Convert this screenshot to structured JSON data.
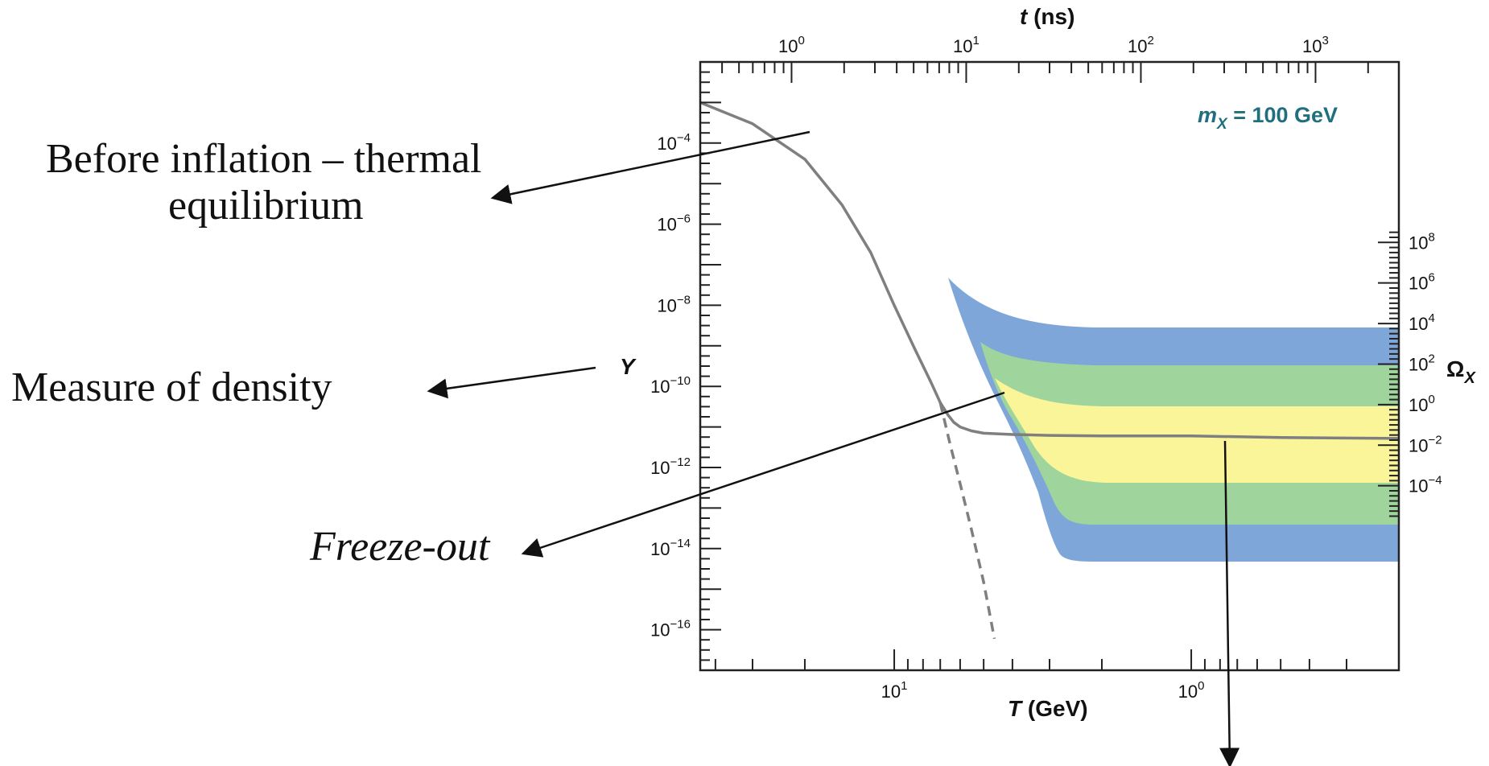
{
  "annotations": {
    "before_inflation_line1": "Before inflation – thermal",
    "before_inflation_line2": "equilibrium",
    "measure_of_density": "Measure of density",
    "freeze_out": "Freeze-out"
  },
  "colors": {
    "blue_band": "#7ea6d8",
    "green_band": "#9fd59c",
    "yellow_band": "#fbf59a",
    "curve": "#7f7f7f",
    "mass_label": "#1f6f7f",
    "annotation_text": "#111111"
  },
  "chart_data": {
    "type": "line",
    "title": "",
    "xlabel": "T (GeV)",
    "x_top_label": "t (ns)",
    "ylabel": "Y",
    "y_right_label": "ΩX",
    "annotation": "mX = 100 GeV",
    "scale": "log-log",
    "x_axis": {
      "name": "T (GeV)",
      "direction": "decreasing",
      "range": [
        45,
        0.2
      ],
      "tick_labels": [
        "10^1",
        "10^0"
      ],
      "tick_values": [
        10,
        1
      ]
    },
    "x_top_axis": {
      "name": "t (ns)",
      "range": [
        0.3,
        3000
      ],
      "tick_labels": [
        "10^0",
        "10^1",
        "10^2",
        "10^3"
      ],
      "tick_values": [
        1,
        10,
        100,
        1000
      ]
    },
    "y_axis": {
      "name": "Y",
      "range": [
        1e-17,
        0.01
      ],
      "tick_labels": [
        "10^-4",
        "10^-6",
        "10^-8",
        "10^-10",
        "10^-12",
        "10^-14",
        "10^-16"
      ],
      "tick_values": [
        0.0001,
        1e-06,
        1e-08,
        1e-10,
        1e-12,
        1e-14,
        1e-16
      ]
    },
    "y_right_axis": {
      "name": "ΩX",
      "tick_labels": [
        "10^8",
        "10^6",
        "10^4",
        "10^2",
        "10^0",
        "10^-2",
        "10^-4"
      ],
      "tick_values": [
        100000000.0,
        1000000.0,
        10000.0,
        100.0,
        1,
        0.01,
        0.0001
      ]
    },
    "series": [
      {
        "x": [
          45,
          30,
          20,
          15,
          12,
          10,
          8.5,
          7.5,
          7,
          6.6,
          6.3,
          6.0,
          5.5,
          5.0,
          4.0,
          3.0,
          2.0,
          1.0,
          0.5,
          0.2
        ],
        "y": [
          0.001,
          0.0003,
          4e-05,
          3e-06,
          2e-07,
          1e-08,
          8e-10,
          1.2e-10,
          4e-11,
          2e-11,
          1.3e-11,
          1e-11,
          8e-12,
          7e-12,
          6.5e-12,
          6.2e-12,
          6e-12,
          6e-12,
          5.5e-12,
          5.2e-12
        ]
      },
      {
        "style": "dashed",
        "x": [
          7,
          6.5,
          6.0,
          5.5,
          5.0,
          4.6
        ],
        "y": [
          4e-11,
          4e-12,
          4e-13,
          3e-14,
          1.5e-15,
          6e-17
        ]
      }
    ],
    "bands": [
      {
        "color": "blue",
        "lower": 1.5e-14,
        "upper": 2e-09
      },
      {
        "color": "green",
        "lower": 1.5e-13,
        "upper": 2e-10
      },
      {
        "color": "yellow",
        "lower": 1.5e-12,
        "upper": 2e-11
      }
    ]
  }
}
